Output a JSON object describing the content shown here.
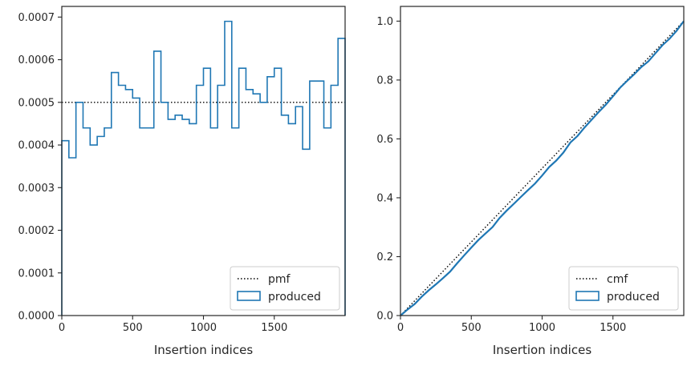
{
  "chart_data": [
    {
      "type": "step",
      "xlabel": "Insertion indices",
      "ylabel": "",
      "xlim": [
        0,
        2000
      ],
      "ylim": [
        0,
        0.000725
      ],
      "xticks": [
        0,
        500,
        1000,
        1500
      ],
      "xtick_labels": [
        "0",
        "500",
        "1000",
        "1500"
      ],
      "yticks": [
        0,
        0.0001,
        0.0002,
        0.0003,
        0.0004,
        0.0005,
        0.0006,
        0.0007
      ],
      "ytick_labels": [
        "0.0000",
        "0.0001",
        "0.0002",
        "0.0003",
        "0.0004",
        "0.0005",
        "0.0006",
        "0.0007"
      ],
      "legend_position": "lower-right",
      "series": [
        {
          "name": "pmf",
          "style": "dotted",
          "color": "#000000",
          "x": [
            0,
            2000
          ],
          "y": [
            0.0005,
            0.0005
          ]
        },
        {
          "name": "produced",
          "style": "step-histogram",
          "color": "#1f77b4",
          "bin_width": 50,
          "bin_edges_start": 0,
          "values": [
            0.00041,
            0.00037,
            0.0005,
            0.00044,
            0.0004,
            0.00042,
            0.00044,
            0.00057,
            0.00054,
            0.00053,
            0.00051,
            0.00044,
            0.00044,
            0.00062,
            0.0005,
            0.00046,
            0.00047,
            0.00046,
            0.00045,
            0.00054,
            0.00058,
            0.00044,
            0.00054,
            0.00069,
            0.00044,
            0.00058,
            0.00053,
            0.00052,
            0.0005,
            0.00056,
            0.00058,
            0.00047,
            0.00045,
            0.00049,
            0.00039,
            0.00055,
            0.00055,
            0.00044,
            0.00054,
            0.00065
          ]
        }
      ]
    },
    {
      "type": "line",
      "xlabel": "Insertion indices",
      "ylabel": "",
      "xlim": [
        0,
        2000
      ],
      "ylim": [
        0,
        1.05
      ],
      "xticks": [
        0,
        500,
        1000,
        1500
      ],
      "xtick_labels": [
        "0",
        "500",
        "1000",
        "1500"
      ],
      "yticks": [
        0,
        0.2,
        0.4,
        0.6,
        0.8,
        1.0
      ],
      "ytick_labels": [
        "0.0",
        "0.2",
        "0.4",
        "0.6",
        "0.8",
        "1.0"
      ],
      "legend_position": "lower-right",
      "series": [
        {
          "name": "cmf",
          "style": "dotted",
          "color": "#000000",
          "x": [
            0,
            2000
          ],
          "y": [
            0,
            1.0
          ]
        },
        {
          "name": "produced",
          "style": "line",
          "color": "#1f77b4",
          "x": [
            0,
            50,
            100,
            150,
            200,
            250,
            300,
            350,
            400,
            450,
            500,
            550,
            600,
            650,
            700,
            750,
            800,
            850,
            900,
            950,
            1000,
            1050,
            1100,
            1150,
            1200,
            1250,
            1300,
            1350,
            1400,
            1450,
            1500,
            1550,
            1600,
            1650,
            1700,
            1750,
            1800,
            1850,
            1900,
            1950,
            2000
          ],
          "y": [
            0,
            0.0205,
            0.039,
            0.064,
            0.086,
            0.106,
            0.127,
            0.149,
            0.1775,
            0.2045,
            0.231,
            0.2565,
            0.2785,
            0.3005,
            0.3315,
            0.3565,
            0.3795,
            0.403,
            0.426,
            0.4485,
            0.4755,
            0.5045,
            0.5265,
            0.5535,
            0.588,
            0.61,
            0.639,
            0.6655,
            0.6915,
            0.7165,
            0.7445,
            0.7735,
            0.797,
            0.8195,
            0.844,
            0.8635,
            0.891,
            0.9185,
            0.9405,
            0.9675,
            1.0
          ]
        }
      ]
    }
  ]
}
